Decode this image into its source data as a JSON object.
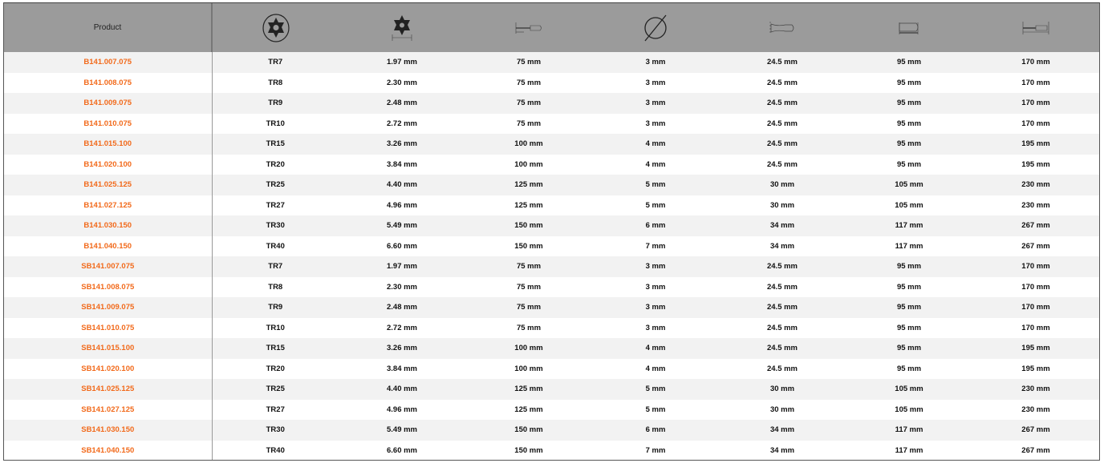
{
  "header": {
    "product": "Product",
    "icons": [
      "torx-tamper-circle-icon",
      "torx-tip-size-icon",
      "blade-length-icon",
      "diameter-icon",
      "handle-diameter-icon",
      "handle-length-icon",
      "overall-length-icon"
    ]
  },
  "colors": {
    "accent": "#f26a1b",
    "header_bg": "#9b9b9b"
  },
  "rows": [
    [
      "B141.007.075",
      "TR7",
      "1.97 mm",
      "75 mm",
      "3 mm",
      "24.5 mm",
      "95 mm",
      "170 mm"
    ],
    [
      "B141.008.075",
      "TR8",
      "2.30 mm",
      "75 mm",
      "3 mm",
      "24.5 mm",
      "95 mm",
      "170 mm"
    ],
    [
      "B141.009.075",
      "TR9",
      "2.48 mm",
      "75 mm",
      "3 mm",
      "24.5 mm",
      "95 mm",
      "170 mm"
    ],
    [
      "B141.010.075",
      "TR10",
      "2.72 mm",
      "75 mm",
      "3 mm",
      "24.5 mm",
      "95 mm",
      "170 mm"
    ],
    [
      "B141.015.100",
      "TR15",
      "3.26 mm",
      "100 mm",
      "4 mm",
      "24.5 mm",
      "95 mm",
      "195 mm"
    ],
    [
      "B141.020.100",
      "TR20",
      "3.84 mm",
      "100 mm",
      "4 mm",
      "24.5 mm",
      "95 mm",
      "195 mm"
    ],
    [
      "B141.025.125",
      "TR25",
      "4.40 mm",
      "125 mm",
      "5 mm",
      "30 mm",
      "105 mm",
      "230 mm"
    ],
    [
      "B141.027.125",
      "TR27",
      "4.96 mm",
      "125 mm",
      "5 mm",
      "30 mm",
      "105 mm",
      "230 mm"
    ],
    [
      "B141.030.150",
      "TR30",
      "5.49 mm",
      "150 mm",
      "6 mm",
      "34 mm",
      "117 mm",
      "267 mm"
    ],
    [
      "B141.040.150",
      "TR40",
      "6.60 mm",
      "150 mm",
      "7 mm",
      "34 mm",
      "117 mm",
      "267 mm"
    ],
    [
      "SB141.007.075",
      "TR7",
      "1.97 mm",
      "75 mm",
      "3 mm",
      "24.5 mm",
      "95 mm",
      "170 mm"
    ],
    [
      "SB141.008.075",
      "TR8",
      "2.30 mm",
      "75 mm",
      "3 mm",
      "24.5 mm",
      "95 mm",
      "170 mm"
    ],
    [
      "SB141.009.075",
      "TR9",
      "2.48 mm",
      "75 mm",
      "3 mm",
      "24.5 mm",
      "95 mm",
      "170 mm"
    ],
    [
      "SB141.010.075",
      "TR10",
      "2.72 mm",
      "75 mm",
      "3 mm",
      "24.5 mm",
      "95 mm",
      "170 mm"
    ],
    [
      "SB141.015.100",
      "TR15",
      "3.26 mm",
      "100 mm",
      "4 mm",
      "24.5 mm",
      "95 mm",
      "195 mm"
    ],
    [
      "SB141.020.100",
      "TR20",
      "3.84 mm",
      "100 mm",
      "4 mm",
      "24.5 mm",
      "95 mm",
      "195 mm"
    ],
    [
      "SB141.025.125",
      "TR25",
      "4.40 mm",
      "125 mm",
      "5 mm",
      "30 mm",
      "105 mm",
      "230 mm"
    ],
    [
      "SB141.027.125",
      "TR27",
      "4.96 mm",
      "125 mm",
      "5 mm",
      "30 mm",
      "105 mm",
      "230 mm"
    ],
    [
      "SB141.030.150",
      "TR30",
      "5.49 mm",
      "150 mm",
      "6 mm",
      "34 mm",
      "117 mm",
      "267 mm"
    ],
    [
      "SB141.040.150",
      "TR40",
      "6.60 mm",
      "150 mm",
      "7 mm",
      "34 mm",
      "117 mm",
      "267 mm"
    ]
  ]
}
